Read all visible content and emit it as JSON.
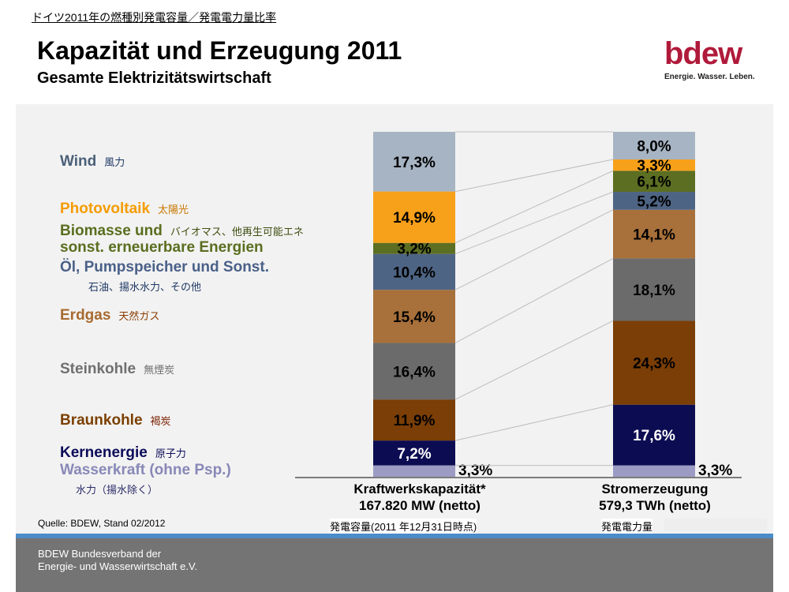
{
  "header": {
    "jp_title": "ドイツ2011年の燃種別発電容量／発電電力量比率",
    "title": "Kapazität und Erzeugung 2011",
    "subtitle": "Gesamte Elektrizitätswirtschaft",
    "logo_word": "bdew",
    "logo_tagline": "Energie. Wasser. Leben."
  },
  "legend": [
    {
      "label": "Wind",
      "jp": "風力",
      "color": "#4a6078",
      "jp_color": "#1f3864"
    },
    {
      "label": "Photovoltaik",
      "jp": "太陽光",
      "color": "#f59c00",
      "jp_color": "#c87800"
    },
    {
      "label": "Biomasse und",
      "label2": "sonst. erneuerbare Energien",
      "jp": "バイオマス、他再生可能エネ",
      "color": "#5a6e1f",
      "jp_color": "#3f4f10"
    },
    {
      "label": "Öl, Pumpspeicher und Sonst.",
      "jp": "石油、揚水水力、その他",
      "color": "#4a6088",
      "jp_color": "#1f3864"
    },
    {
      "label": "Erdgas",
      "jp": "天然ガス",
      "color": "#a86a30",
      "jp_color": "#8a3c00"
    },
    {
      "label": "Steinkohle",
      "jp": "無煙炭",
      "color": "#707070",
      "jp_color": "#707070"
    },
    {
      "label": "Braunkohle",
      "jp": "褐炭",
      "color": "#7b3f00",
      "jp_color": "#7b1f00"
    },
    {
      "label": "Kernenergie",
      "jp": "原子力",
      "color": "#0c0c5a",
      "jp_color": "#0c0c5a"
    },
    {
      "label": "Wasserkraft (ohne Psp.)",
      "jp": "水力（揚水除く）",
      "color": "#8888b8",
      "jp_color": "#2a2a6a"
    }
  ],
  "chart_data": {
    "type": "bar",
    "stacked": true,
    "percent": true,
    "categories": [
      "Kraftwerkskapazität*\n167.820 MW (netto)",
      "Stromerzeugung\n579,3 TWh (netto)"
    ],
    "series": [
      {
        "name": "Wasserkraft (ohne Psp.)",
        "values": [
          3.3,
          3.3
        ],
        "labels": [
          "3,3%",
          "3,3%"
        ],
        "color": "#9b9bc4",
        "text": "#000000"
      },
      {
        "name": "Kernenergie",
        "values": [
          7.2,
          17.6
        ],
        "labels": [
          "7,2%",
          "17,6%"
        ],
        "color": "#0c0c52",
        "text": "#ffffff"
      },
      {
        "name": "Braunkohle",
        "values": [
          11.9,
          24.3
        ],
        "labels": [
          "11,9%",
          "24,3%"
        ],
        "color": "#7a3e06",
        "text": "#000000"
      },
      {
        "name": "Steinkohle",
        "values": [
          16.4,
          18.1
        ],
        "labels": [
          "16,4%",
          "18,1%"
        ],
        "color": "#6b6b6b",
        "text": "#000000"
      },
      {
        "name": "Erdgas",
        "values": [
          15.4,
          14.1
        ],
        "labels": [
          "15,4%",
          "14,1%"
        ],
        "color": "#a8703a",
        "text": "#000000"
      },
      {
        "name": "Öl, Pumpspeicher und Sonst.",
        "values": [
          10.4,
          5.2
        ],
        "labels": [
          "10,4%",
          "5,2%"
        ],
        "color": "#4e6484",
        "text": "#000000"
      },
      {
        "name": "Biomasse und sonst. erneuerbare Energien",
        "values": [
          3.2,
          6.1
        ],
        "labels": [
          "3,2%",
          "6,1%"
        ],
        "color": "#5c6e22",
        "text": "#000000"
      },
      {
        "name": "Photovoltaik",
        "values": [
          14.9,
          3.3
        ],
        "labels": [
          "14,9%",
          "3,3%"
        ],
        "color": "#f7a01a",
        "text": "#000000"
      },
      {
        "name": "Wind",
        "values": [
          17.3,
          8.0
        ],
        "labels": [
          "17,3%",
          "8,0%"
        ],
        "color": "#a7b4c3",
        "text": "#000000"
      }
    ]
  },
  "captions": {
    "left_line1": "Kraftwerkskapazität*",
    "left_line2": "167.820 MW (netto)",
    "left_jp": "発電容量(2011 年12月31日時点)",
    "right_line1": "Stromerzeugung",
    "right_line2": "579,3 TWh (netto)",
    "right_jp": "発電電力量"
  },
  "source": "Quelle: BDEW, Stand 02/2012",
  "footer": {
    "line1": "BDEW Bundesverband der",
    "line2": "Energie- und Wasserwirtschaft e.V."
  }
}
